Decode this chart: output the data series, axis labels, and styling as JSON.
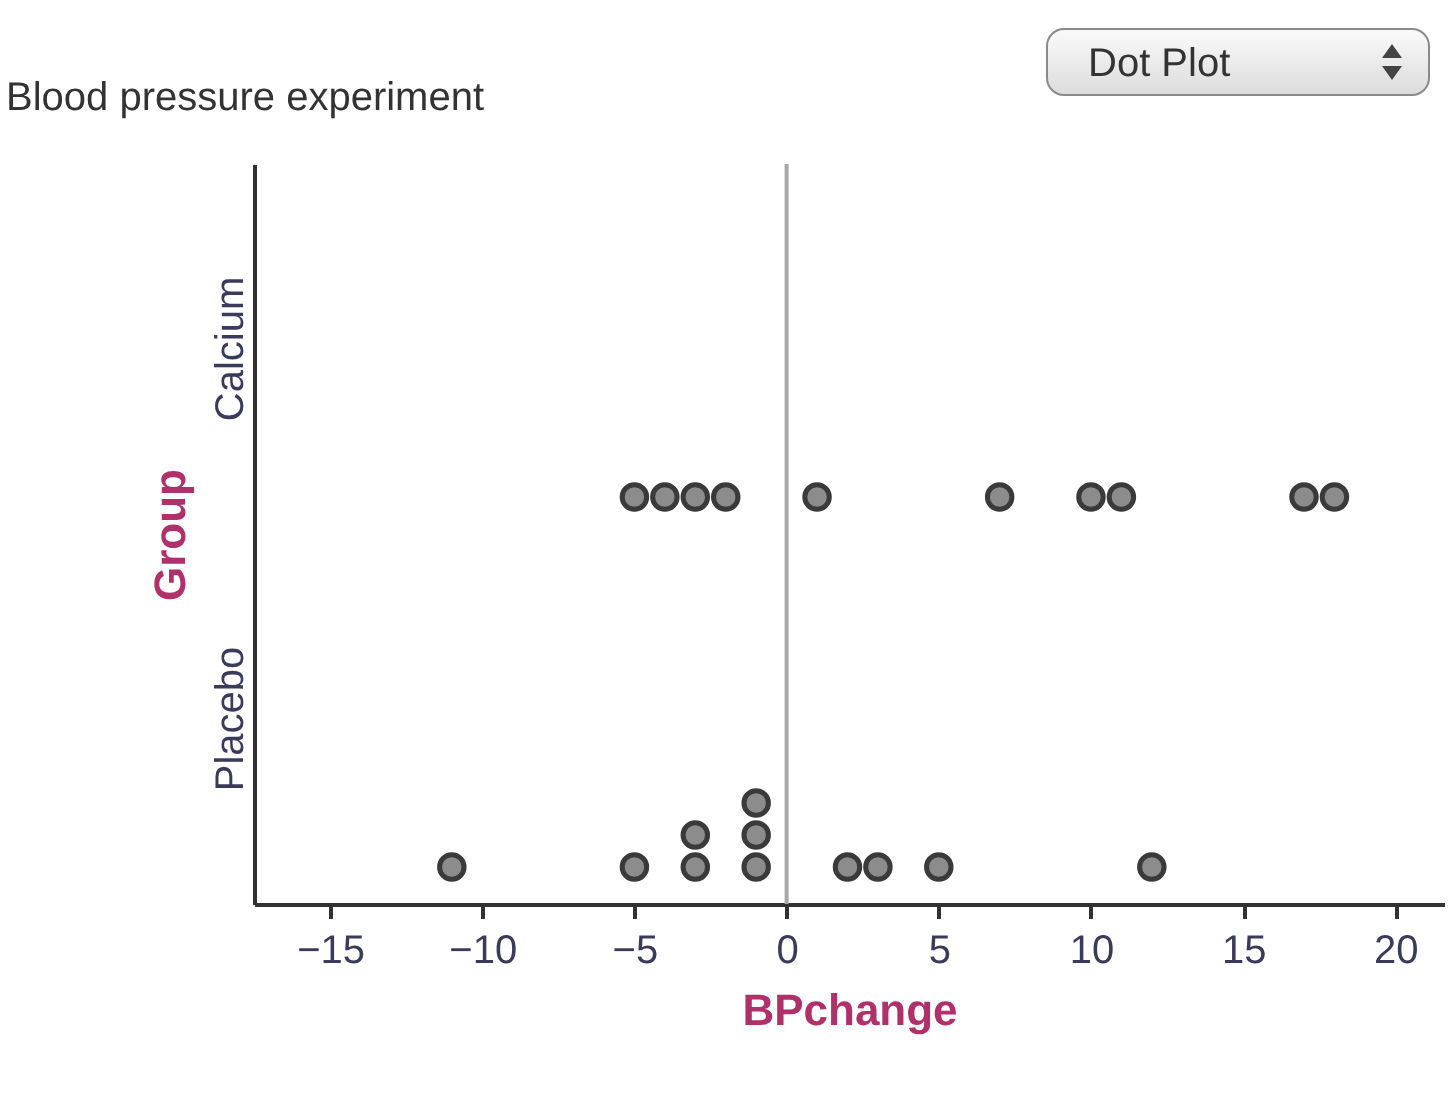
{
  "chart_data": {
    "type": "scatter",
    "title": "Blood pressure experiment",
    "xlabel": "BPchange",
    "ylabel": "Group",
    "orientation": "horizontal",
    "categories": [
      "Calcium",
      "Placebo"
    ],
    "series": [
      {
        "color": "#8c8c8c",
        "x": [
          "Calcium",
          "Calcium",
          "Calcium",
          "Calcium",
          "Calcium",
          "Calcium",
          "Calcium",
          "Calcium",
          "Calcium",
          "Calcium"
        ],
        "values": [
          -5,
          -4,
          -3,
          -2,
          1,
          7,
          10,
          11,
          17,
          18
        ]
      },
      {
        "color": "#8c8c8c",
        "x": [
          "Placebo",
          "Placebo",
          "Placebo",
          "Placebo",
          "Placebo",
          "Placebo",
          "Placebo",
          "Placebo",
          "Placebo",
          "Placebo",
          "Placebo"
        ],
        "values": [
          -11,
          -5,
          -3,
          -3,
          -1,
          -1,
          -1,
          2,
          3,
          5,
          12
        ]
      }
    ],
    "xlim": [
      -17.5,
      21.6
    ],
    "xticks": [
      -15,
      -10,
      -5,
      0,
      5,
      10,
      15,
      20
    ],
    "marker": "circle",
    "grid": false,
    "ref_lines": [
      {
        "axis": "x",
        "value": 0,
        "color": "#a8a8a8"
      }
    ],
    "annotations": [
      "Dot Plot"
    ]
  }
}
